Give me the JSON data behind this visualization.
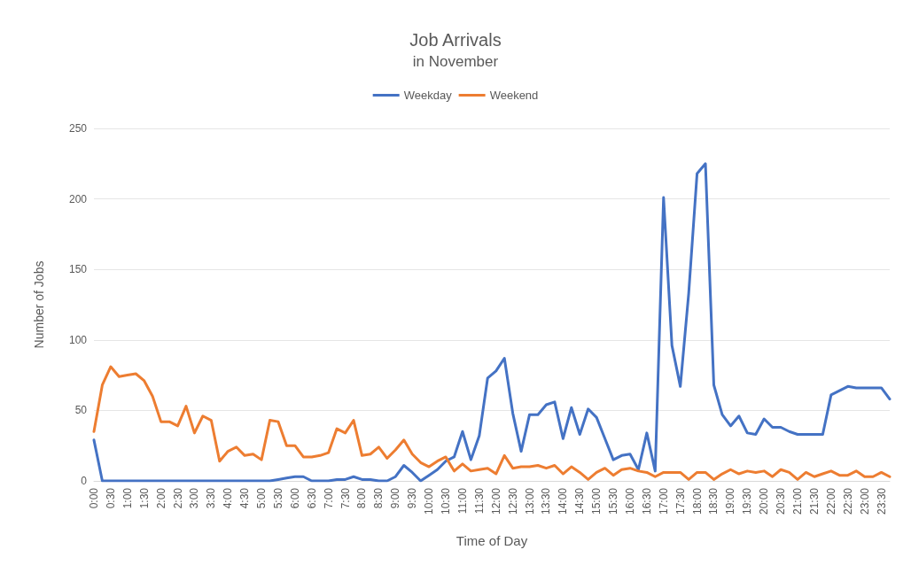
{
  "chart_data": {
    "type": "line",
    "title": "Job Arrivals",
    "subtitle": "in November",
    "xlabel": "Time of Day",
    "ylabel": "Number of Jobs",
    "categories": [
      "0:00",
      null,
      "0:30",
      null,
      "1:00",
      null,
      "1:30",
      null,
      "2:00",
      null,
      "2:30",
      null,
      "3:00",
      null,
      "3:30",
      null,
      "4:00",
      null,
      "4:30",
      null,
      "5:00",
      null,
      "5:30",
      null,
      "6:00",
      null,
      "6:30",
      null,
      "7:00",
      null,
      "7:30",
      null,
      "8:00",
      null,
      "8:30",
      null,
      "9:00",
      null,
      "9:30",
      null,
      "10:00",
      null,
      "10:30",
      null,
      "11:00",
      null,
      "11:30",
      null,
      "12:00",
      null,
      "12:30",
      null,
      "13:00",
      null,
      "13:30",
      null,
      "14:00",
      null,
      "14:30",
      null,
      "15:00",
      null,
      "15:30",
      null,
      "16:00",
      null,
      "16:30",
      null,
      "17:00",
      null,
      "17:30",
      null,
      "18:00",
      null,
      "18:30",
      null,
      "19:00",
      null,
      "19:30",
      null,
      "20:00",
      null,
      "20:30",
      null,
      "21:00",
      null,
      "21:30",
      null,
      "22:00",
      null,
      "22:30",
      null,
      "23:00",
      null,
      "23:30",
      null
    ],
    "series": [
      {
        "name": "Weekday",
        "color": "#4472c4",
        "values": [
          29,
          0,
          0,
          0,
          0,
          0,
          0,
          0,
          0,
          0,
          0,
          0,
          0,
          0,
          0,
          0,
          0,
          0,
          0,
          0,
          0,
          0,
          1,
          2,
          3,
          3,
          0,
          0,
          0,
          1,
          1,
          3,
          1,
          1,
          0,
          0,
          3,
          11,
          6,
          0,
          4,
          8,
          14,
          17,
          35,
          15,
          32,
          73,
          78,
          87,
          48,
          21,
          47,
          47,
          54,
          56,
          30,
          52,
          33,
          51,
          45,
          30,
          15,
          18,
          19,
          8,
          34,
          7,
          201,
          96,
          67,
          133,
          218,
          225,
          68,
          47,
          39,
          46,
          34,
          33,
          44,
          38,
          38,
          35,
          33,
          33,
          33,
          33,
          61,
          64,
          67,
          66,
          66,
          66,
          66,
          58
        ]
      },
      {
        "name": "Weekend",
        "color": "#ed7d31",
        "values": [
          35,
          68,
          81,
          74,
          75,
          76,
          71,
          60,
          42,
          42,
          39,
          53,
          34,
          46,
          43,
          14,
          21,
          24,
          18,
          19,
          15,
          43,
          42,
          25,
          25,
          17,
          17,
          18,
          20,
          37,
          34,
          43,
          18,
          19,
          24,
          16,
          22,
          29,
          19,
          13,
          10,
          14,
          17,
          7,
          12,
          7,
          8,
          9,
          5,
          18,
          9,
          10,
          10,
          11,
          9,
          11,
          5,
          10,
          6,
          1,
          6,
          9,
          4,
          8,
          9,
          7,
          6,
          3,
          6,
          6,
          6,
          1,
          6,
          6,
          1,
          5,
          8,
          5,
          7,
          6,
          7,
          3,
          8,
          6,
          1,
          6,
          3,
          5,
          7,
          4,
          4,
          7,
          3,
          3,
          6,
          3
        ]
      }
    ],
    "ylim": [
      0,
      250
    ],
    "yticks": [
      0,
      50,
      100,
      150,
      200,
      250
    ],
    "grid": "y",
    "legend": "top",
    "marker": "none",
    "line_style": "solid"
  }
}
